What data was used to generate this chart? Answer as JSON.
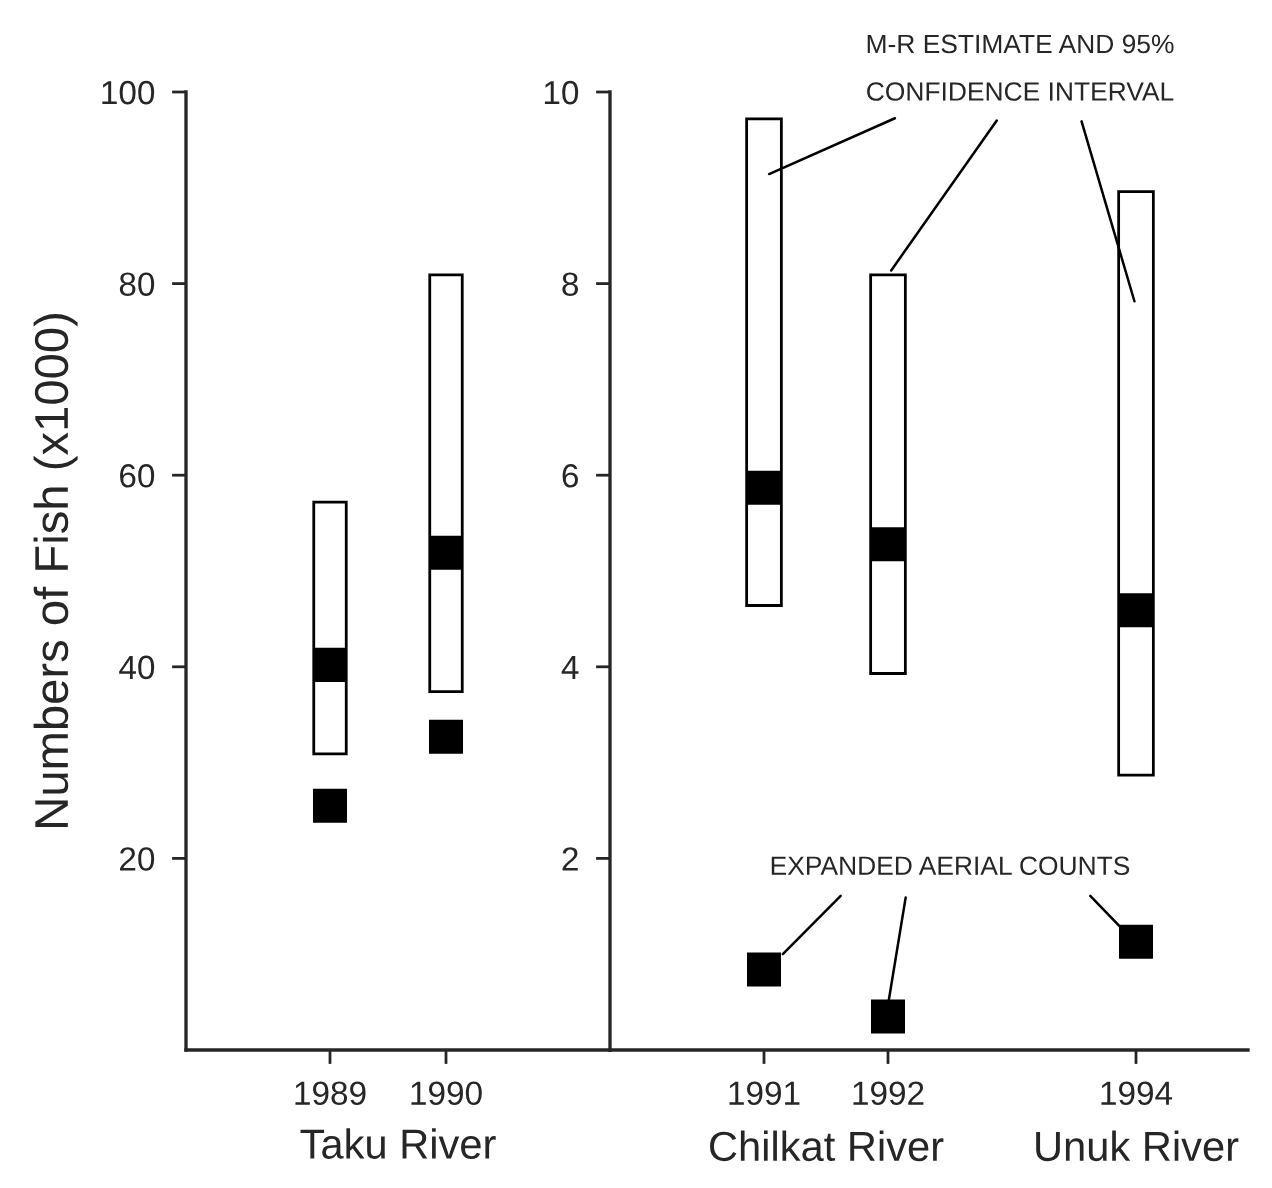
{
  "chart_data": [
    {
      "type": "bar",
      "categories": [
        "1989",
        "1990"
      ],
      "xlabel": "Taku River",
      "ylabel": "Numbers of Fish (x1000)",
      "ylim": [
        0,
        100
      ],
      "yticks": [
        20,
        40,
        60,
        80,
        100
      ],
      "grid": false,
      "legend": false,
      "marker": "square",
      "series": [
        {
          "color": "#ffffff",
          "base": [
            30.9,
            37.4
          ],
          "values": [
            26.3,
            43.5
          ]
        },
        {
          "type": "scatter",
          "color": "#000000",
          "values": [
            40.2,
            51.9
          ]
        },
        {
          "type": "scatter",
          "color": "#000000",
          "values": [
            25.5,
            32.7
          ]
        }
      ]
    },
    {
      "type": "bar",
      "categories": [
        "1991",
        "1992",
        null,
        "1994"
      ],
      "ylim": [
        0,
        10
      ],
      "yticks": [
        2,
        4,
        6,
        8,
        10
      ],
      "grid": false,
      "legend": false,
      "marker": "square",
      "annotations": [
        {
          "text": "M-R ESTIMATE AND 95%\nCONFIDENCE INTERVAL",
          "x": "1992",
          "y": 8.09
        },
        {
          "text": "EXPANDED AERIAL COUNTS",
          "x": "1992",
          "y": 0.35
        },
        "Chilkat River",
        "Unuk River"
      ],
      "series": [
        {
          "color": "#ffffff",
          "base": [
            4.64,
            3.93,
            null,
            2.87
          ],
          "values": [
            5.08,
            4.16,
            null,
            6.09
          ]
        },
        {
          "type": "scatter",
          "color": "#000000",
          "values": [
            5.87,
            5.28,
            null,
            4.59
          ]
        },
        {
          "type": "scatter",
          "color": "#000000",
          "values": [
            0.84,
            0.35,
            null,
            1.13
          ]
        }
      ]
    }
  ]
}
